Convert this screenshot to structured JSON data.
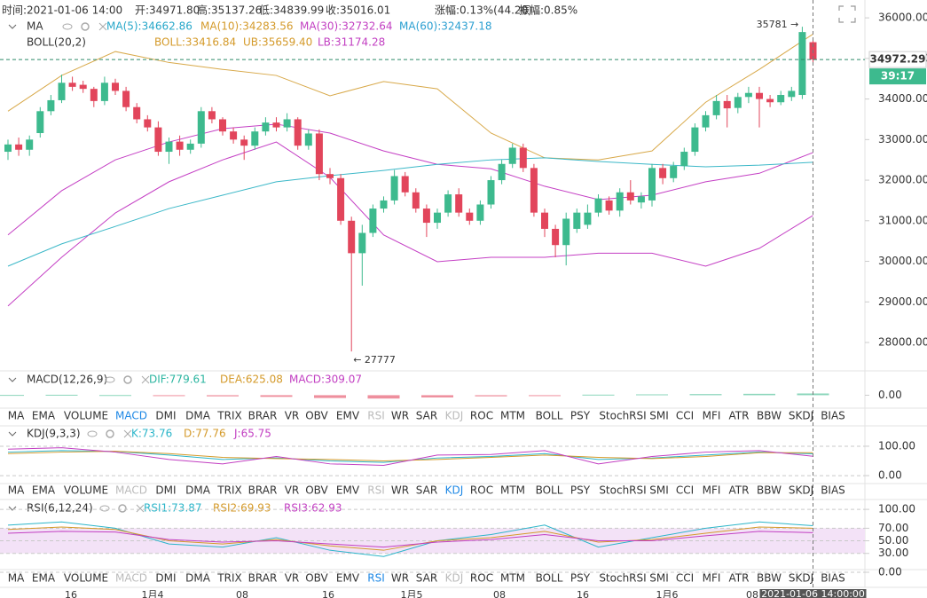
{
  "top_bar": [
    "时间:2021-01-06 14:00",
    "开:34971.80",
    "高:35137.26",
    "低:34839.99",
    "收:35016.01",
    "涨幅:0.13%(44.20)",
    "振幅:0.85%"
  ],
  "line_x": [
    0,
    5,
    10,
    15,
    20,
    25,
    30,
    35,
    40,
    45,
    50,
    55,
    60,
    65,
    70,
    75
  ],
  "main_chart": {
    "type": "candlestick",
    "legend_ma": {
      "label": "MA",
      "items": [
        {
          "text": "MA(5):34662.86",
          "color": "#27a7c9"
        },
        {
          "text": "MA(10):34283.56",
          "color": "#d49a2a"
        },
        {
          "text": "MA(30):32732.64",
          "color": "#c23fc2"
        },
        {
          "text": "MA(60):32437.18",
          "color": "#2b9fd1"
        }
      ]
    },
    "legend_boll": {
      "label": "BOLL(20,2)",
      "items": [
        {
          "text": "BOLL:33416.84",
          "color": "#d49a2a"
        },
        {
          "text": "UB:35659.40",
          "color": "#d49a2a"
        },
        {
          "text": "LB:31174.28",
          "color": "#c23fc2"
        }
      ]
    },
    "ylim": [
      27300,
      36440
    ],
    "yticks": [
      {
        "value": 28000,
        "label": "28000.00"
      },
      {
        "value": 29000,
        "label": "29000.00"
      },
      {
        "value": 30000,
        "label": "30000.00"
      },
      {
        "value": 31000,
        "label": "31000.00"
      },
      {
        "value": 32000,
        "label": "32000.00"
      },
      {
        "value": 33000,
        "label": "33000.00"
      },
      {
        "value": 34000,
        "label": "34000.00"
      },
      {
        "value": 35000,
        "label": "35000.00"
      },
      {
        "value": 36000,
        "label": "36000.00"
      }
    ],
    "up_color": "#3dba8e",
    "down_color": "#e2455b",
    "open": [
      32700,
      32880,
      32750,
      33160,
      33700,
      33970,
      34400,
      34350,
      34250,
      33950,
      34400,
      34200,
      33800,
      33500,
      33300,
      32700,
      32950,
      32750,
      32900,
      33700,
      33500,
      33200,
      33000,
      32850,
      33200,
      33420,
      33300,
      33500,
      32850,
      33150,
      32150,
      32050,
      31000,
      30200,
      30700,
      31300,
      31500,
      32100,
      31700,
      31300,
      30950,
      31200,
      31650,
      31200,
      31000,
      31400,
      32000,
      32400,
      32800,
      32300,
      31200,
      30800,
      30400,
      30800,
      30900,
      31200,
      31500,
      31250,
      31700,
      31450,
      31500,
      32300,
      32050,
      32350,
      32700,
      33300,
      33600,
      33950,
      33780,
      34050,
      34150,
      34000,
      33920,
      34050,
      34100,
      35400
    ],
    "high": [
      33000,
      33050,
      33100,
      33800,
      34100,
      34600,
      34550,
      34450,
      34300,
      34550,
      34500,
      34300,
      33900,
      33600,
      33450,
      33050,
      33100,
      33000,
      33800,
      33800,
      33550,
      33300,
      33100,
      33300,
      33550,
      33550,
      33650,
      33550,
      33250,
      33250,
      32300,
      32150,
      31100,
      30900,
      31400,
      31600,
      32250,
      32200,
      31800,
      31400,
      31300,
      31750,
      31800,
      31300,
      31500,
      32100,
      32500,
      32900,
      32900,
      32400,
      31300,
      30900,
      31200,
      31300,
      31400,
      31650,
      31600,
      31800,
      32000,
      31700,
      32400,
      32400,
      32450,
      32800,
      33400,
      33700,
      34100,
      34100,
      34150,
      34300,
      34300,
      34100,
      34200,
      34300,
      35781,
      35450
    ],
    "low": [
      32500,
      32600,
      32600,
      33050,
      33600,
      33900,
      34200,
      34150,
      33800,
      33850,
      34100,
      33700,
      33400,
      33200,
      32600,
      32400,
      32600,
      32650,
      32800,
      33400,
      33100,
      32900,
      32500,
      32750,
      33100,
      33200,
      33200,
      32750,
      32750,
      32000,
      31900,
      30900,
      27777,
      29400,
      30600,
      31200,
      31400,
      31600,
      31200,
      30600,
      30800,
      31100,
      31100,
      30900,
      30900,
      31300,
      31900,
      32300,
      32200,
      31100,
      30600,
      30100,
      29900,
      30700,
      30800,
      31100,
      31150,
      31100,
      31400,
      31300,
      31350,
      31900,
      31950,
      32250,
      32600,
      33200,
      33500,
      33300,
      33650,
      33900,
      33300,
      33800,
      33850,
      33950,
      34000,
      34850
    ],
    "close": [
      32880,
      32750,
      33000,
      33700,
      33970,
      34400,
      34300,
      34250,
      33950,
      34400,
      34200,
      33800,
      33500,
      33300,
      32700,
      32950,
      32750,
      32900,
      33700,
      33500,
      33200,
      33000,
      32850,
      33200,
      33420,
      33300,
      33500,
      32850,
      33150,
      32150,
      32050,
      31000,
      30200,
      30700,
      31300,
      31500,
      32100,
      31700,
      31300,
      30950,
      31200,
      31650,
      31200,
      31000,
      31400,
      32000,
      32400,
      32800,
      32300,
      31200,
      30800,
      30400,
      31050,
      31200,
      31200,
      31550,
      31250,
      31700,
      31500,
      31600,
      32300,
      32050,
      32350,
      32700,
      33300,
      33600,
      33950,
      33770,
      34050,
      34150,
      34000,
      33920,
      34100,
      34200,
      35650,
      34972
    ],
    "lines": [
      {
        "color": "#d8a94a",
        "values": [
          33700,
          34580,
          35170,
          34900,
          34730,
          34580,
          34080,
          34430,
          34250,
          33160,
          32550,
          32500,
          32720,
          33920,
          34730,
          35600
        ]
      },
      {
        "color": "#c43fc4",
        "values": [
          30650,
          31740,
          32500,
          32940,
          33270,
          33380,
          33160,
          32720,
          32390,
          32280,
          31850,
          31520,
          31630,
          31960,
          32170,
          32680
        ]
      },
      {
        "color": "#c43fc4",
        "values": [
          28900,
          30100,
          31190,
          31960,
          32500,
          32940,
          32070,
          30650,
          29990,
          30100,
          30100,
          30200,
          30200,
          29880,
          30320,
          31130
        ]
      },
      {
        "color": "#3cb8c8",
        "values": [
          29880,
          30430,
          30860,
          31300,
          31630,
          31960,
          32110,
          32240,
          32390,
          32500,
          32550,
          32460,
          32390,
          32330,
          32370,
          32440
        ]
      }
    ],
    "last_price": {
      "value": 34972.29,
      "label": "34972.29"
    },
    "countdown": "39:17",
    "annotations": [
      {
        "value": 35781,
        "label": "35781 →",
        "at": "high"
      },
      {
        "value": 27777,
        "label": "← 27777",
        "at": "low"
      }
    ]
  },
  "macd": {
    "type": "bar",
    "legend": {
      "label": "MACD(12,26,9)",
      "items": [
        {
          "text": "DIF:779.61",
          "color": "#2bb5a0"
        },
        {
          "text": "DEA:625.08",
          "color": "#d49a2a"
        },
        {
          "text": "MACD:309.07",
          "color": "#c23fc2"
        }
      ]
    },
    "ylim": [
      -2000,
      1500
    ],
    "yticks": [
      {
        "value": 0,
        "label": "0.00"
      }
    ],
    "values": [
      50,
      80,
      30,
      -100,
      -200,
      -300,
      -500,
      -600,
      -400,
      -200,
      -100,
      100,
      150,
      200,
      250,
      309
    ]
  },
  "kdj": {
    "type": "line",
    "legend": {
      "label": "KDJ(9,3,3)",
      "items": [
        {
          "text": "K:73.76",
          "color": "#2bb5c9"
        },
        {
          "text": "D:77.76",
          "color": "#d49a2a"
        },
        {
          "text": "J:65.75",
          "color": "#c23fc2"
        }
      ]
    },
    "ylim": [
      -30,
      130
    ],
    "yticks": [
      {
        "value": 0,
        "label": "0.00"
      },
      {
        "value": 100,
        "label": "100.00"
      }
    ],
    "series": [
      {
        "color": "#2bb5c9",
        "values": [
          80,
          85,
          82,
          70,
          55,
          60,
          50,
          45,
          60,
          65,
          75,
          55,
          60,
          70,
          80,
          74
        ]
      },
      {
        "color": "#d49a2a",
        "values": [
          75,
          80,
          83,
          75,
          62,
          58,
          55,
          50,
          55,
          62,
          70,
          62,
          58,
          65,
          78,
          78
        ]
      },
      {
        "color": "#c23fc2",
        "values": [
          90,
          95,
          80,
          55,
          40,
          65,
          40,
          35,
          70,
          72,
          85,
          40,
          65,
          80,
          85,
          66
        ]
      }
    ]
  },
  "rsi": {
    "type": "line",
    "legend": {
      "label": "RSI(6,12,24)",
      "items": [
        {
          "text": "RSI1:73.87",
          "color": "#2bb5c9"
        },
        {
          "text": "RSI2:69.93",
          "color": "#d49a2a"
        },
        {
          "text": "RSI3:62.93",
          "color": "#c23fc2"
        }
      ]
    },
    "ylim": [
      0,
      110
    ],
    "yticks": [
      {
        "value": 0,
        "label": "0.00"
      },
      {
        "value": 30,
        "label": "30.00"
      },
      {
        "value": 50,
        "label": "50.00"
      },
      {
        "value": 70,
        "label": "70.00"
      },
      {
        "value": 100,
        "label": "100.00"
      }
    ],
    "series": [
      {
        "color": "#2bb5c9",
        "values": [
          75,
          80,
          70,
          45,
          40,
          55,
          35,
          25,
          50,
          60,
          75,
          40,
          55,
          70,
          80,
          74
        ]
      },
      {
        "color": "#d49a2a",
        "values": [
          68,
          72,
          68,
          50,
          45,
          52,
          42,
          35,
          50,
          55,
          65,
          48,
          52,
          62,
          72,
          70
        ]
      },
      {
        "color": "#c23fc2",
        "values": [
          62,
          65,
          64,
          52,
          48,
          50,
          45,
          40,
          48,
          52,
          60,
          50,
          50,
          58,
          65,
          63
        ]
      }
    ]
  },
  "tabs": [
    "MA",
    "EMA",
    "VOLUME",
    "MACD",
    "DMI",
    "DMA",
    "TRIX",
    "BRAR",
    "VR",
    "OBV",
    "EMV",
    "RSI",
    "WR",
    "SAR",
    "KDJ",
    "ROC",
    "MTM",
    "BOLL",
    "PSY",
    "StochRSI",
    "SMI",
    "CCI",
    "MFI",
    "ATR",
    "BBW",
    "SKDJ",
    "BIAS"
  ],
  "tab_rows": [
    {
      "active": 3,
      "disabled": [
        11,
        14
      ]
    },
    {
      "active": 14,
      "disabled": [
        3,
        11
      ]
    },
    {
      "active": 11,
      "disabled": [
        3,
        14
      ]
    }
  ],
  "time_axis": [
    "16",
    "1月4",
    "08",
    "16",
    "1月5",
    "08",
    "16",
    "1月6",
    "08"
  ],
  "cursor_time": "2021-01-06 14:00:00"
}
